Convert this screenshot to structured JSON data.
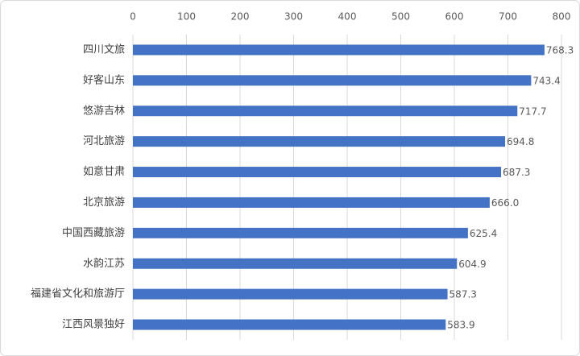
{
  "chart_data": {
    "type": "bar",
    "orientation": "horizontal",
    "categories": [
      "四川文旅",
      "好客山东",
      "悠游吉林",
      "河北旅游",
      "如意甘肃",
      "北京旅游",
      "中国西藏旅游",
      "水韵江苏",
      "福建省文化和旅游厅",
      "江西风景独好"
    ],
    "values": [
      768.3,
      743.4,
      717.7,
      694.8,
      687.3,
      666.0,
      625.4,
      604.9,
      587.3,
      583.9
    ],
    "value_labels": [
      "768.3",
      "743.4",
      "717.7",
      "694.8",
      "687.3",
      "666.0",
      "625.4",
      "604.9",
      "587.3",
      "583.9"
    ],
    "color": "#4472c4",
    "xlim": [
      0,
      800
    ],
    "xticks": [
      0,
      100,
      200,
      300,
      400,
      500,
      600,
      700,
      800
    ],
    "grid": true
  }
}
